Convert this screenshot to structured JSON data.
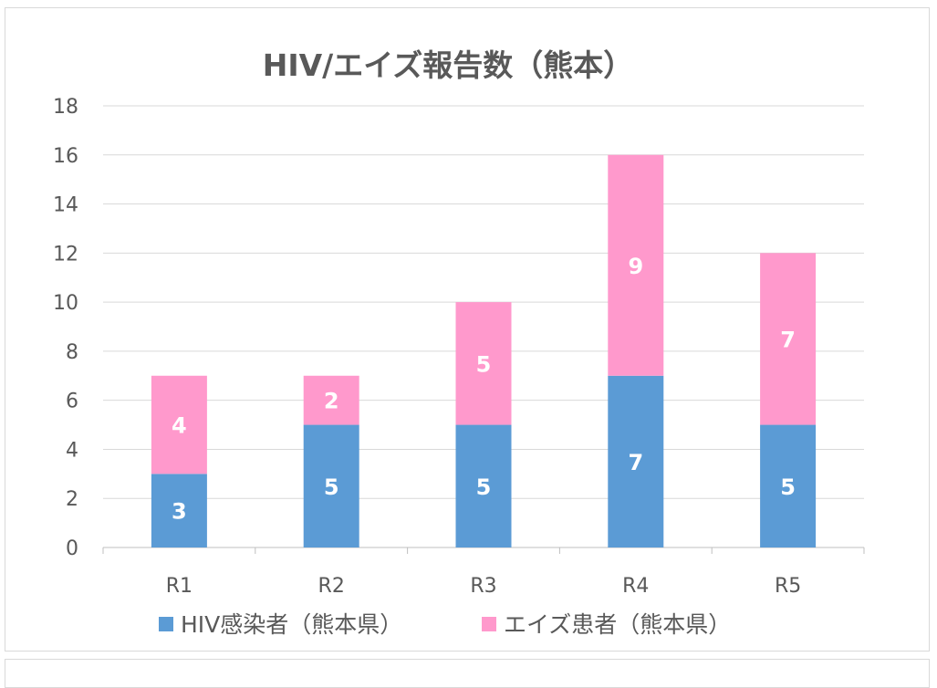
{
  "chart_data": {
    "type": "bar",
    "stacked": true,
    "title": "HIV/エイズ報告数（熊本）",
    "xlabel": "",
    "ylabel": "",
    "categories": [
      "R1",
      "R2",
      "R3",
      "R4",
      "R5"
    ],
    "series": [
      {
        "name": "HIV感染者（熊本県）",
        "values": [
          3,
          5,
          5,
          7,
          5
        ],
        "color": "#5b9bd5"
      },
      {
        "name": "エイズ患者（熊本県）",
        "values": [
          4,
          2,
          5,
          9,
          7
        ],
        "color": "#ff99cc"
      }
    ],
    "ylim": [
      0,
      18
    ],
    "yticks": [
      0,
      2,
      4,
      6,
      8,
      10,
      12,
      14,
      16,
      18
    ],
    "grid": true,
    "legend": "bottom",
    "data_labels": true
  }
}
